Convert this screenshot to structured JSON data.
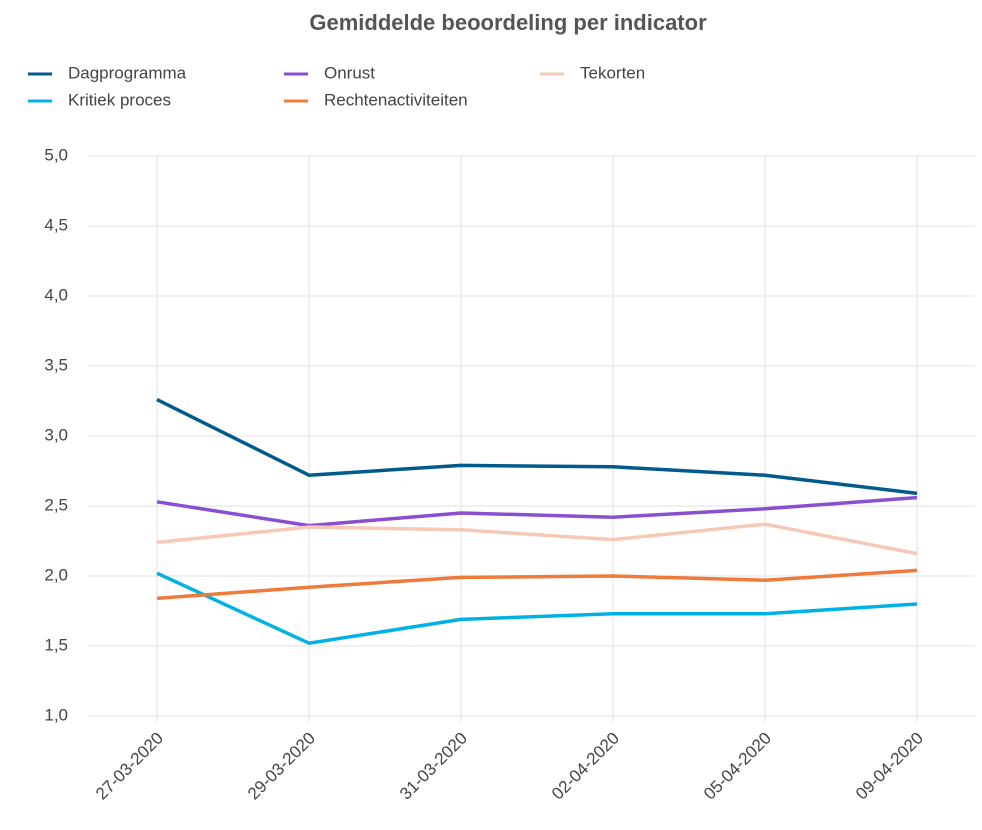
{
  "chart_data": {
    "type": "line",
    "title": "Gemiddelde beoordeling per indicator",
    "categories": [
      "27-03-2020",
      "29-03-2020",
      "31-03-2020",
      "02-04-2020",
      "05-04-2020",
      "09-04-2020"
    ],
    "series": [
      {
        "name": "Dagprogramma",
        "color": "#005a8c",
        "values": [
          3.26,
          2.72,
          2.79,
          2.78,
          2.72,
          2.59
        ]
      },
      {
        "name": "Kritiek proces",
        "color": "#00b2e3",
        "values": [
          2.02,
          1.52,
          1.69,
          1.73,
          1.73,
          1.8
        ]
      },
      {
        "name": "Onrust",
        "color": "#8a4fd0",
        "values": [
          2.53,
          2.36,
          2.45,
          2.42,
          2.48,
          2.56
        ]
      },
      {
        "name": "Rechtenactiviteiten",
        "color": "#f07a3c",
        "values": [
          1.84,
          1.92,
          1.99,
          2.0,
          1.97,
          2.04
        ]
      },
      {
        "name": "Tekorten",
        "color": "#f6c8b5",
        "values": [
          2.24,
          2.35,
          2.33,
          2.26,
          2.37,
          2.16
        ]
      }
    ],
    "ylim": [
      1,
      5
    ],
    "yticks": [
      {
        "value": 1,
        "label": "1,0"
      },
      {
        "value": 1.5,
        "label": "1,5"
      },
      {
        "value": 2,
        "label": "2,0"
      },
      {
        "value": 2.5,
        "label": "2,5"
      },
      {
        "value": 3,
        "label": "3,0"
      },
      {
        "value": 3.5,
        "label": "3,5"
      },
      {
        "value": 4,
        "label": "4,0"
      },
      {
        "value": 4.5,
        "label": "4,5"
      },
      {
        "value": 5,
        "label": "5,0"
      }
    ],
    "grid": true,
    "legend": "top"
  }
}
